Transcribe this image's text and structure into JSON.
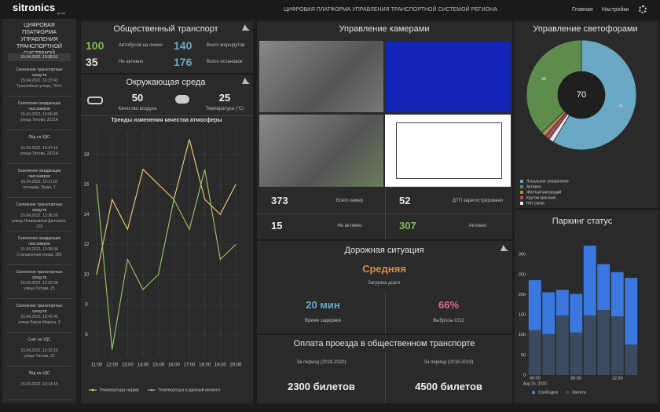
{
  "header": {
    "logo": "sitronics",
    "logo_sub": "group",
    "title": "ЦИФРОВАЯ ПЛАТФОРМА УПРАВЛЕНИЯ ТРАНСПОРТНОЙ СИСТЕМОЙ РЕГИОНА",
    "nav": [
      "Главная",
      "Настройки"
    ]
  },
  "sidebar": {
    "title": "ЦИФРОВАЯ ПЛАТФОРМА УПРАВЛЕНИЯ ТРАНСПОРТНОЙ СИСТЕМОЙ",
    "datetime": "15.04.2022, 19:38:51",
    "events": [
      {
        "type": "Скопление транспортных средств",
        "time": "15.04.2022, 16:37:43",
        "address": "Троллейная улица, 7б/т1"
      },
      {
        "type": "Скопление ожидающих пассажиров",
        "time": "15.04.2022, 16:00:45",
        "address": "улица Титова, 2021А"
      },
      {
        "type": "Лёд на УДС",
        "time": "15.04.2022, 15:47:16",
        "address": "улица Титова, 2021А"
      },
      {
        "type": "Скопление ожидающих пассажиров",
        "time": "15.04.2022, 15:11:02",
        "address": "площадь Труда, 1"
      },
      {
        "type": "Скопление транспортных средств",
        "time": "15.04.2022, 13:36:29",
        "address": "улица Немировича-Данченко, 129"
      },
      {
        "type": "Скопление ожидающих пассажиров",
        "time": "15.04.2022, 12:35:04",
        "address": "Станционная улица, 38б"
      },
      {
        "type": "Скопление транспортных средств",
        "time": "15.04.2022, 12:00:28",
        "address": "улица Титова, 25"
      },
      {
        "type": "Скопление транспортных средств",
        "time": "15.04.2022, 10:42:43",
        "address": "улица Карла Маркса, 3"
      },
      {
        "type": "Снег на УДС",
        "time": "15.04.2022, 10:15:16",
        "address": "улица Титова, 52"
      },
      {
        "type": "Лёд на УДС",
        "time": "15.04.2022, 10:14:10",
        "address": ""
      }
    ]
  },
  "transport": {
    "title": "Общественный транспорт",
    "stats": [
      {
        "value": 100,
        "label": "Автобусов на линии",
        "color": "#7dbb5b"
      },
      {
        "value": 140,
        "label": "Всего маршрутов",
        "color": "#6aa8c4"
      },
      {
        "value": 35,
        "label": "Не активно",
        "color": "#e6e6e6"
      },
      {
        "value": 176,
        "label": "Всего остановок",
        "color": "#6aa8c4"
      }
    ]
  },
  "environment": {
    "title": "Окружающая среда",
    "stats": [
      {
        "value": 50,
        "label": "Качество воздуха"
      },
      {
        "value": 25,
        "label": "Температура (°С)"
      }
    ],
    "chart": {
      "type": "line",
      "title": "Тренды изменения качества атмосферы",
      "categories": [
        "11:00",
        "12:00",
        "13:00",
        "14:00",
        "15:00",
        "16:00",
        "17:00",
        "18:00",
        "19:00",
        "20:00"
      ],
      "series": [
        {
          "name": "Температура норма",
          "color": "#f2d27a",
          "values": [
            10,
            15,
            13,
            17,
            16,
            15,
            19,
            15,
            14,
            16
          ]
        },
        {
          "name": "Температура в данный момент",
          "color": "#9cc76a",
          "values": [
            16,
            5,
            11,
            9,
            10,
            15,
            13,
            17,
            11,
            12
          ]
        }
      ],
      "ylim": [
        4.5,
        19.5
      ],
      "yticks": [
        6,
        8,
        10,
        12,
        14,
        16,
        18
      ],
      "grid": true
    }
  },
  "cameras": {
    "title": "Управление камерами",
    "stats": [
      {
        "value": 373,
        "label": "Всего камер",
        "color": "#e6e6e6"
      },
      {
        "value": 52,
        "label": "ДТП зарегистрировано",
        "color": "#e6e6e6"
      },
      {
        "value": 15,
        "label": "Не активно",
        "color": "#e6e6e6"
      },
      {
        "value": 307,
        "label": "Активно",
        "color": "#7dbb5b"
      }
    ]
  },
  "road": {
    "title": "Дорожная ситуация",
    "level": "Средняя",
    "level_label": "Загрузка дорог",
    "stats": [
      {
        "value": "20 мин",
        "label": "Время задержки",
        "color": "#6aa8c4"
      },
      {
        "value": "66%",
        "label": "Выбросы CO2",
        "color": "#d9708a"
      }
    ]
  },
  "fares": {
    "title": "Оплата проезда в общественном транспорте",
    "periods": [
      {
        "label": "За период (2019-2020)",
        "value": "2300 билетов"
      },
      {
        "label": "За период (2018-2019)",
        "value": "4500 билетов"
      }
    ]
  },
  "traffic_lights": {
    "type": "pie",
    "title": "Управление светофорами",
    "total": 70,
    "categories": [
      "Локальное управление",
      "Активно",
      "Желтый мигающий",
      "Кругом красный",
      "Нет связи"
    ],
    "values": [
      41,
      26,
      1,
      1,
      1
    ],
    "colors": [
      "#6aa8c4",
      "#5d8c4c",
      "#a88a4a",
      "#b0475e",
      "#e8e8e8"
    ],
    "donut": true
  },
  "parking": {
    "type": "bar",
    "stacked": true,
    "title": "Паркинг статус",
    "categories": [
      "00:00",
      null,
      null,
      "06:00",
      null,
      null,
      "12:00",
      null
    ],
    "x_sublabel": "Aug 15, 2020",
    "series": [
      {
        "name": "Занято",
        "color": "#3b4a5e",
        "values": [
          112,
          102,
          148,
          106,
          148,
          162,
          146,
          76
        ]
      },
      {
        "name": "Свободно",
        "color": "#3a78e0",
        "values": [
          124,
          104,
          64,
          96,
          174,
          114,
          110,
          166
        ]
      }
    ],
    "legend_order": [
      1,
      0
    ],
    "ylim": [
      0,
      320
    ],
    "yticks": [
      0,
      50,
      100,
      150,
      200,
      250,
      300
    ]
  }
}
